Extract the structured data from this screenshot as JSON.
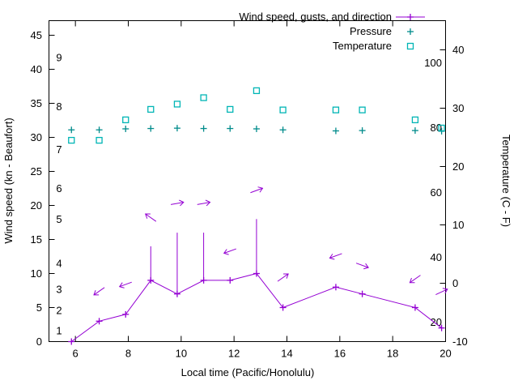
{
  "chart_data": {
    "type": "line",
    "title": "",
    "xlabel": "Local time (Pacific/Honolulu)",
    "ylabel_left": "Wind speed (kn - Beaufort)",
    "ylabel_right": "Temperature (C - F)",
    "x_range": [
      5,
      20
    ],
    "y_left_range": [
      0,
      47.14
    ],
    "y_right_range": [
      -10,
      45
    ],
    "x_ticks": [
      6,
      8,
      10,
      12,
      14,
      16,
      18,
      20
    ],
    "y_left_ticks": [
      0,
      5,
      10,
      15,
      20,
      25,
      30,
      35,
      40,
      45
    ],
    "y_right_ticks": [
      -10,
      0,
      10,
      20,
      30,
      40
    ],
    "beaufort_inner_labels": [
      {
        "label": "1",
        "at_kn": 1.6
      },
      {
        "label": "2",
        "at_kn": 4.6
      },
      {
        "label": "3",
        "at_kn": 7.7
      },
      {
        "label": "4",
        "at_kn": 11.5
      },
      {
        "label": "5",
        "at_kn": 18.0
      },
      {
        "label": "6",
        "at_kn": 22.5
      },
      {
        "label": "7",
        "at_kn": 28.2
      },
      {
        "label": "8",
        "at_kn": 34.5
      },
      {
        "label": "9",
        "at_kn": 41.7
      }
    ],
    "fahrenheit_inner_labels": [
      {
        "label": "20",
        "at_f": 20
      },
      {
        "label": "40",
        "at_f": 40
      },
      {
        "label": "60",
        "at_f": 60
      },
      {
        "label": "80",
        "at_f": 80
      },
      {
        "label": "100",
        "at_f": 100
      }
    ],
    "legend": [
      {
        "label": "Wind speed, gusts, and direction",
        "series": "wind",
        "marker": "line-plus"
      },
      {
        "label": "Pressure",
        "series": "pressure",
        "marker": "plus"
      },
      {
        "label": "Temperature",
        "series": "temperature",
        "marker": "open-square"
      }
    ],
    "colors": {
      "wind": "#9400d3",
      "pressure": "#008b8b",
      "temperature": "#00b5b5",
      "axis": "#000000",
      "background": "#ffffff"
    },
    "series": {
      "wind": {
        "name": "Wind speed, gusts, and direction",
        "unit": "kn",
        "points": [
          {
            "t": 5.85,
            "speed": 0
          },
          {
            "t": 6.9,
            "speed": 3,
            "dir_deg": 215,
            "arrow_at_kn": 7.4
          },
          {
            "t": 7.9,
            "speed": 4,
            "dir_deg": 200,
            "arrow_at_kn": 8.4
          },
          {
            "t": 8.85,
            "speed": 9,
            "gust": 14,
            "dir_deg": 145,
            "arrow_at_kn": 18.2
          },
          {
            "t": 9.85,
            "speed": 7,
            "gust": 16,
            "dir_deg": 10,
            "arrow_at_kn": 20.3
          },
          {
            "t": 10.85,
            "speed": 9,
            "gust": 16,
            "dir_deg": 10,
            "arrow_at_kn": 20.3
          },
          {
            "t": 11.85,
            "speed": 9,
            "dir_deg": 200,
            "arrow_at_kn": 13.3
          },
          {
            "t": 12.85,
            "speed": 10,
            "gust": 18,
            "dir_deg": 20,
            "arrow_at_kn": 22.2
          },
          {
            "t": 13.85,
            "speed": 5,
            "dir_deg": 35,
            "arrow_at_kn": 9.4
          },
          {
            "t": 15.85,
            "speed": 8,
            "dir_deg": 200,
            "arrow_at_kn": 12.6
          },
          {
            "t": 16.85,
            "speed": 7,
            "dir_deg": 340,
            "arrow_at_kn": 11.2
          },
          {
            "t": 18.85,
            "speed": 5,
            "dir_deg": 215,
            "arrow_at_kn": 9.2
          },
          {
            "t": 19.85,
            "speed": 2,
            "dir_deg": 25,
            "arrow_at_kn": 7.3
          }
        ]
      },
      "pressure": {
        "name": "Pressure",
        "t": [
          5.85,
          6.9,
          7.9,
          8.85,
          9.85,
          10.85,
          11.85,
          12.85,
          13.85,
          15.85,
          16.85,
          18.85,
          19.85
        ],
        "value_left_axis": [
          31.1,
          31.1,
          31.25,
          31.3,
          31.35,
          31.3,
          31.3,
          31.25,
          31.1,
          30.95,
          31.0,
          31.0,
          30.9
        ]
      },
      "temperature": {
        "name": "Temperature",
        "unit": "C",
        "t": [
          5.85,
          6.9,
          7.9,
          8.85,
          9.85,
          10.85,
          11.85,
          12.85,
          13.85,
          15.85,
          16.85,
          18.85,
          19.85
        ],
        "celsius": [
          24.5,
          24.5,
          28.0,
          29.8,
          30.7,
          31.8,
          29.8,
          33.0,
          29.7,
          29.7,
          29.7,
          28.0,
          26.6
        ]
      }
    }
  }
}
